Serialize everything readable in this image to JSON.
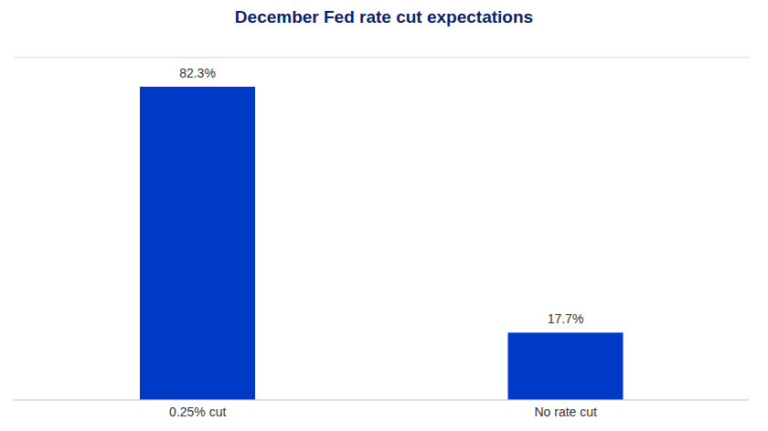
{
  "chart_data": {
    "type": "bar",
    "title": "December Fed rate cut expectations",
    "categories": [
      "0.25% cut",
      "No rate cut"
    ],
    "values": [
      82.3,
      17.7
    ],
    "value_labels": [
      "82.3%",
      "17.7%"
    ],
    "color": "#0039c6",
    "ylim": [
      0,
      90
    ],
    "yticks": [
      0,
      10,
      20,
      30,
      40,
      50,
      60,
      70,
      80,
      90
    ],
    "grid": true,
    "data_labels": true,
    "tick_labels": "x"
  }
}
